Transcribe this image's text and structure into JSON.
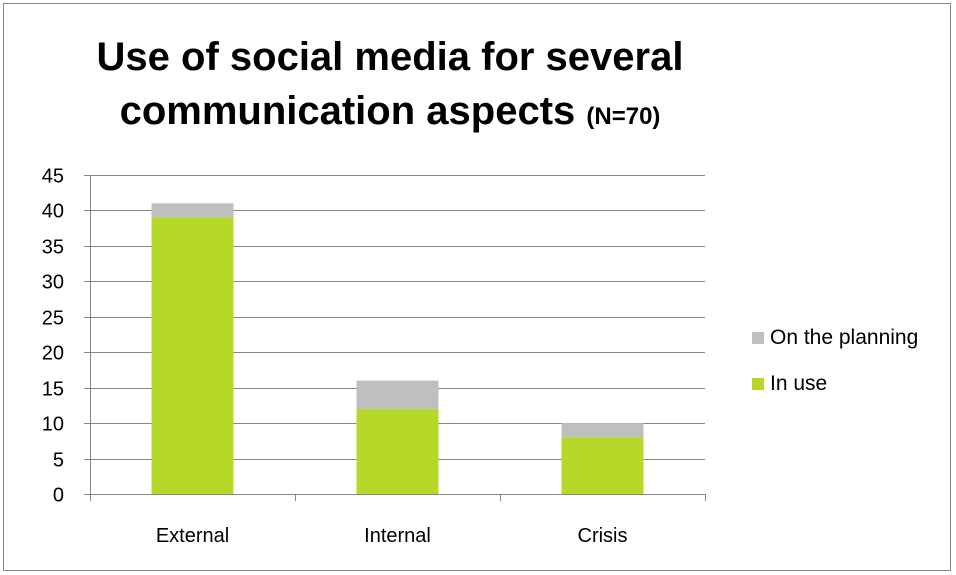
{
  "chart_data": {
    "type": "bar",
    "stacked": true,
    "title": "Use of social media for several communication aspects",
    "title_line1": "Use of social media for several",
    "title_line2": "communication aspects",
    "title_note": "(N=70)",
    "xlabel": "",
    "ylabel": "",
    "categories": [
      "External",
      "Internal",
      "Crisis"
    ],
    "series": [
      {
        "name": "In use",
        "values": [
          39,
          12,
          8
        ],
        "color": "#b5d829"
      },
      {
        "name": "On the planning",
        "values": [
          2,
          4,
          2
        ],
        "color": "#bfbfbf"
      }
    ],
    "ylim": [
      0,
      45
    ],
    "yticks": [
      0,
      5,
      10,
      15,
      20,
      25,
      30,
      35,
      40,
      45
    ],
    "grid": true,
    "legend_position": "right",
    "legend_order": [
      "On the planning",
      "In use"
    ]
  }
}
